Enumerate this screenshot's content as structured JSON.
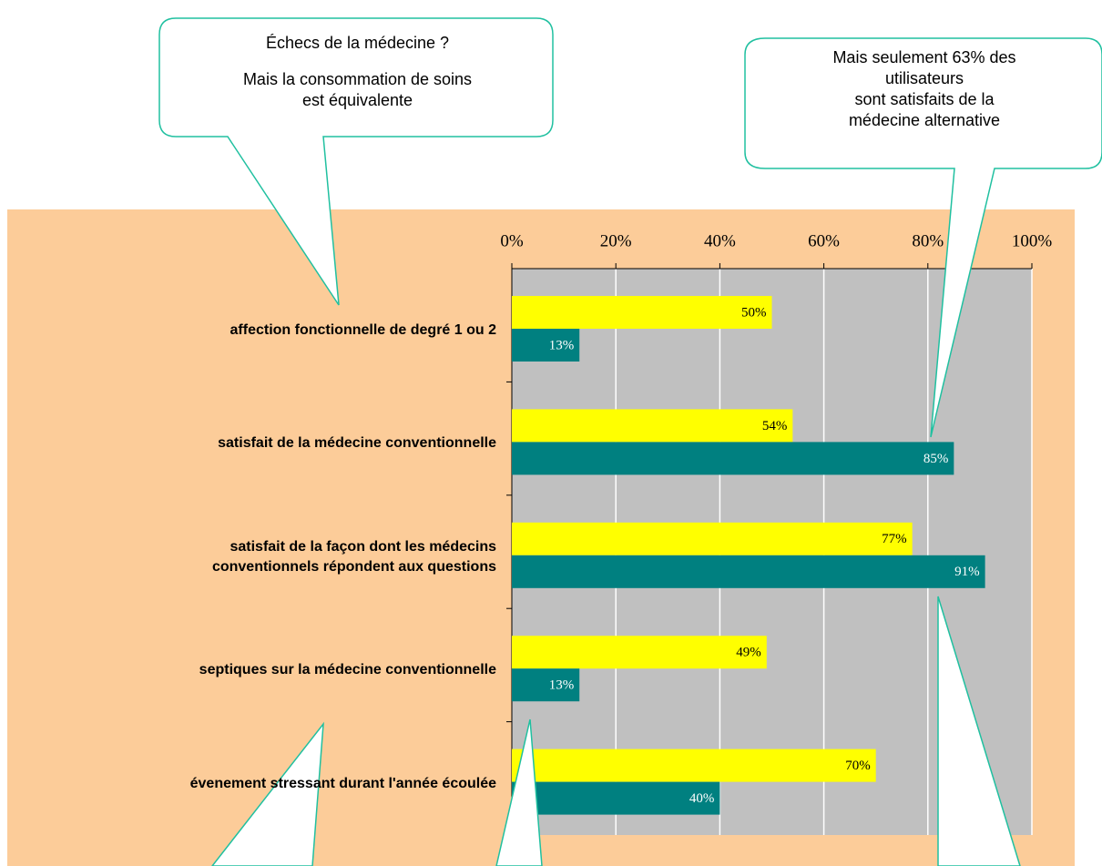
{
  "chart_data": {
    "type": "bar",
    "orientation": "horizontal",
    "categories": [
      "affection fonctionnelle de degré 1 ou 2",
      "satisfait de la médecine conventionnelle",
      "satisfait de la façon dont les médecins \nconventionnels répondent aux questions",
      "septiques sur la médecine conventionnelle",
      "évenement stressant durant l'année écoulée"
    ],
    "series": [
      {
        "color": "#ffff00",
        "values": [
          50,
          54,
          77,
          49,
          70
        ],
        "value_labels": [
          "50%",
          "54%",
          "77%",
          "49%",
          "70%"
        ]
      },
      {
        "color": "#008080",
        "values": [
          13,
          85,
          91,
          13,
          40
        ],
        "value_labels": [
          "13%",
          "85%",
          "91%",
          "13%",
          "40%"
        ]
      }
    ],
    "xlim": [
      0,
      100
    ],
    "xticks": [
      {
        "value": 0,
        "label": "0%"
      },
      {
        "value": 20,
        "label": "20%"
      },
      {
        "value": 40,
        "label": "40%"
      },
      {
        "value": 60,
        "label": "60%"
      },
      {
        "value": 80,
        "label": "80%"
      },
      {
        "value": 100,
        "label": "100%"
      }
    ],
    "grid": true,
    "annotations": [
      {
        "lines": [
          "Échecs de la médecine ?",
          "Mais la consommation de soins est équivalente"
        ]
      },
      {
        "lines": [
          "Mais seulement 63% des\nutilisateurs\nsont satisfaits de la\nmédecine alternative"
        ]
      }
    ]
  }
}
